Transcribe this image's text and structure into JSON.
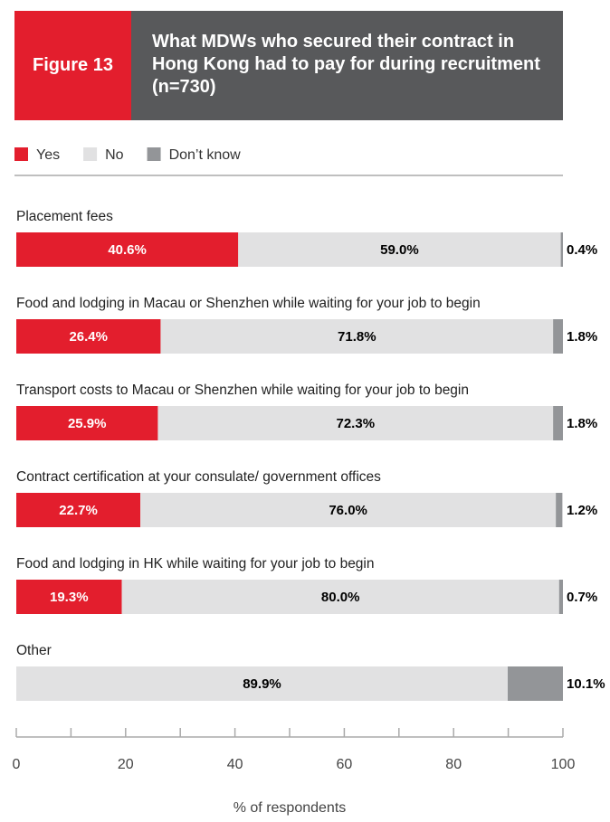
{
  "chart_data": {
    "type": "stacked-bar-horizontal",
    "figure_label": "Figure 13",
    "title": "What MDWs who secured their contract in Hong Kong had to pay for during recruitment (n=730)",
    "categories": [
      "Placement fees",
      "Food and lodging in Macau or Shenzhen while waiting for your job to begin",
      "Transport costs to Macau or Shenzhen while waiting for your job to begin",
      "Contract certification at your consulate/ government offices",
      "Food and lodging in HK while waiting for your job to begin",
      "Other"
    ],
    "series": [
      {
        "name": "Yes",
        "color": "#e31e2d",
        "label_color": "#ffffff",
        "label_position": "inside",
        "values": [
          40.6,
          26.4,
          25.9,
          22.7,
          19.3,
          null
        ],
        "value_labels": [
          "40.6%",
          "26.4%",
          "25.9%",
          "22.7%",
          "19.3%",
          null
        ]
      },
      {
        "name": "No",
        "color": "#e1e1e2",
        "label_color": "#000000",
        "label_position": "inside",
        "values": [
          59.0,
          71.8,
          72.3,
          76.0,
          80.0,
          89.9
        ],
        "value_labels": [
          "59.0%",
          "71.8%",
          "72.3%",
          "76.0%",
          "80.0%",
          "89.9%"
        ]
      },
      {
        "name": "Don’t know",
        "color": "#939598",
        "label_color": "#000000",
        "label_position": "outside",
        "values": [
          0.4,
          1.8,
          1.8,
          1.2,
          0.7,
          10.1
        ],
        "value_labels": [
          "0.4%",
          "1.8%",
          "1.8%",
          "1.2%",
          "0.7%",
          "10.1%"
        ]
      }
    ],
    "xlim": [
      0,
      100
    ],
    "xticks": [
      0,
      20,
      40,
      60,
      80,
      100
    ],
    "minor_xticks": [
      10,
      30,
      50,
      70,
      90
    ],
    "xlabel": "% of respondents",
    "legend": "top-left"
  }
}
